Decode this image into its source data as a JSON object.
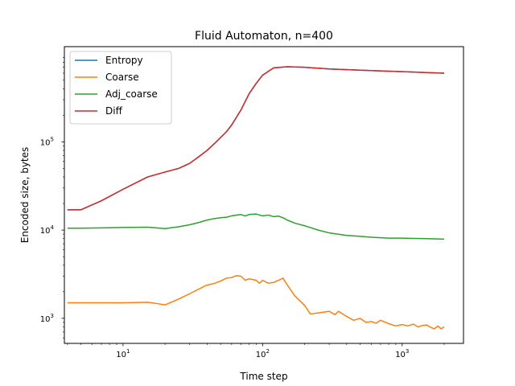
{
  "chart_data": {
    "type": "line",
    "title": "Fluid Automaton, n=400",
    "xlabel": "Time step",
    "ylabel": "Encoded size, bytes",
    "xscale": "log",
    "yscale": "log",
    "xlim": [
      3.8,
      2750
    ],
    "ylim": [
      520,
      1200000
    ],
    "x_ticks": [
      {
        "value": 10,
        "base": "10",
        "exp": "1"
      },
      {
        "value": 100,
        "base": "10",
        "exp": "2"
      },
      {
        "value": 1000,
        "base": "10",
        "exp": "3"
      }
    ],
    "y_ticks": [
      {
        "value": 1000,
        "base": "10",
        "exp": "3"
      },
      {
        "value": 10000,
        "base": "10",
        "exp": "4"
      },
      {
        "value": 100000,
        "base": "10",
        "exp": "5"
      }
    ],
    "grid": false,
    "legend_position": "top-left",
    "series": [
      {
        "name": "Entropy",
        "color": "#1f77b4",
        "x": [
          4,
          5,
          7,
          10,
          15,
          20,
          25,
          30,
          35,
          40,
          45,
          50,
          55,
          60,
          70,
          80,
          90,
          100,
          120,
          150,
          200,
          300,
          500,
          1000,
          1500,
          2000
        ],
        "y": [
          17000,
          17000,
          21500,
          29000,
          40000,
          45500,
          50000,
          57000,
          68000,
          80000,
          95000,
          112000,
          130000,
          155000,
          230000,
          350000,
          460000,
          570000,
          690000,
          710000,
          700000,
          670000,
          650000,
          625000,
          610000,
          600000
        ]
      },
      {
        "name": "Coarse",
        "color": "#ff7f0e",
        "x": [
          4,
          5,
          7,
          10,
          15,
          18,
          20,
          25,
          30,
          35,
          38,
          40,
          45,
          50,
          55,
          60,
          65,
          70,
          75,
          80,
          85,
          90,
          95,
          100,
          110,
          120,
          130,
          140,
          150,
          170,
          200,
          220,
          250,
          300,
          330,
          350,
          400,
          450,
          500,
          550,
          600,
          650,
          700,
          800,
          900,
          1000,
          1100,
          1200,
          1300,
          1400,
          1500,
          1600,
          1700,
          1800,
          1900,
          2000
        ],
        "y": [
          1500,
          1500,
          1500,
          1500,
          1520,
          1460,
          1420,
          1650,
          1900,
          2150,
          2300,
          2380,
          2480,
          2650,
          2850,
          2900,
          3050,
          3000,
          2700,
          2800,
          2750,
          2700,
          2500,
          2700,
          2500,
          2550,
          2700,
          2850,
          2400,
          1800,
          1400,
          1120,
          1150,
          1200,
          1100,
          1200,
          1050,
          950,
          1000,
          900,
          920,
          880,
          950,
          870,
          820,
          850,
          820,
          860,
          800,
          830,
          840,
          790,
          760,
          820,
          760,
          800
        ]
      },
      {
        "name": "Adj_coarse",
        "color": "#2ca02c",
        "x": [
          4,
          5,
          7,
          10,
          15,
          20,
          25,
          30,
          35,
          40,
          45,
          50,
          55,
          60,
          70,
          75,
          80,
          90,
          100,
          110,
          120,
          130,
          140,
          150,
          170,
          200,
          250,
          300,
          400,
          500,
          600,
          800,
          1000,
          1500,
          2000
        ],
        "y": [
          10500,
          10500,
          10600,
          10700,
          10800,
          10400,
          10900,
          11500,
          12200,
          13000,
          13500,
          13800,
          14000,
          14500,
          15000,
          14500,
          15000,
          15200,
          14500,
          14800,
          14200,
          14400,
          13800,
          13000,
          12000,
          11200,
          10000,
          9300,
          8700,
          8500,
          8300,
          8100,
          8100,
          8000,
          7900
        ]
      },
      {
        "name": "Diff",
        "color": "#d62728",
        "x": [
          4,
          5,
          7,
          10,
          15,
          20,
          25,
          30,
          35,
          40,
          45,
          50,
          55,
          60,
          70,
          80,
          90,
          100,
          120,
          150,
          200,
          300,
          500,
          1000,
          1500,
          2000
        ],
        "y": [
          17000,
          17000,
          21500,
          29000,
          40000,
          45500,
          50000,
          57000,
          68000,
          80000,
          95000,
          112000,
          130000,
          155000,
          230000,
          350000,
          460000,
          570000,
          690000,
          710000,
          700000,
          670000,
          650000,
          625000,
          610000,
          600000
        ]
      }
    ]
  }
}
